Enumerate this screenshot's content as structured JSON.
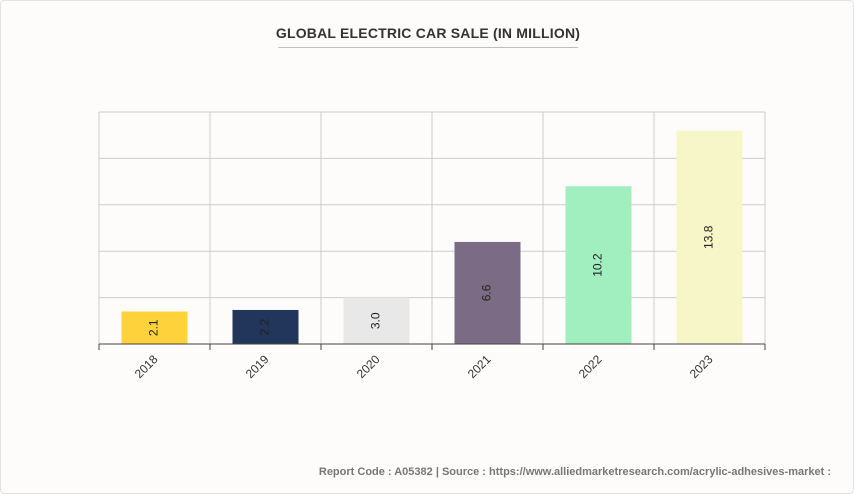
{
  "chart_data": {
    "type": "bar",
    "title": "GLOBAL ELECTRIC CAR SALE (IN MILLION)",
    "categories": [
      "2018",
      "2019",
      "2020",
      "2021",
      "2022",
      "2023"
    ],
    "values": [
      2.1,
      2.2,
      3.0,
      6.6,
      10.2,
      13.8
    ],
    "value_labels": [
      "2.1",
      "2.2",
      "3.0",
      "6.6",
      "10.2",
      "13.8"
    ],
    "colors": [
      "#fdd23b",
      "#22355a",
      "#e8e8e8",
      "#7b6b84",
      "#a1efbf",
      "#f6f6c8"
    ],
    "ylim": [
      0,
      15
    ],
    "gridlines": true,
    "xlabel": "",
    "ylabel": ""
  },
  "footer": {
    "text": "Report Code : A05382  |  Source : https://www.alliedmarketresearch.com/acrylic-adhesives-market :"
  }
}
